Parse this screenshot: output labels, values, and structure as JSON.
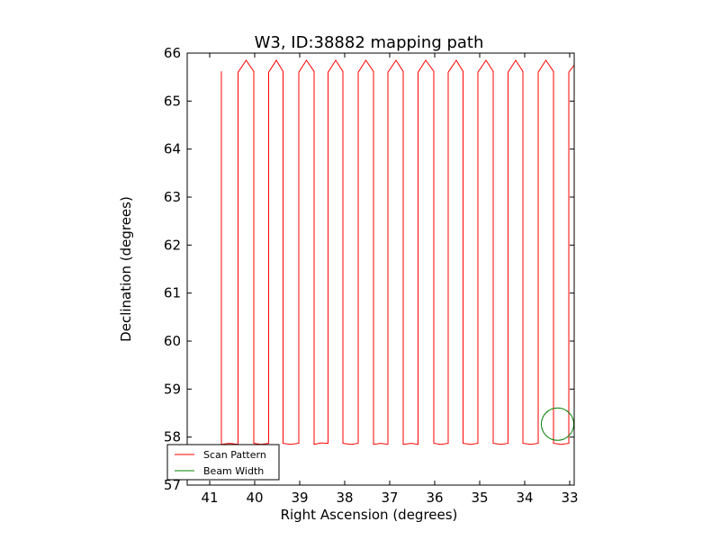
{
  "chart_data": {
    "type": "line",
    "title": "W3, ID:38882 mapping path",
    "xlabel": "Right Ascension (degrees)",
    "ylabel": "Declination (degrees)",
    "xlim": [
      41.5,
      32.9
    ],
    "ylim": [
      57,
      66
    ],
    "xticks": [
      41,
      40,
      39,
      38,
      37,
      36,
      35,
      34,
      33
    ],
    "yticks": [
      57,
      58,
      59,
      60,
      61,
      62,
      63,
      64,
      65,
      66
    ],
    "x_inverted": true,
    "grid": false,
    "legend_position": "lower-left",
    "series": [
      {
        "name": "Scan Pattern",
        "color": "#ff0000",
        "x": [
          40.74,
          40.74,
          40.74,
          40.55,
          40.37,
          40.37,
          40.19,
          40.02,
          40.02,
          39.86,
          39.69,
          39.69,
          39.52,
          39.37,
          39.37,
          39.21,
          39.02,
          39.02,
          38.85,
          38.68,
          38.68,
          38.53,
          38.37,
          38.37,
          38.2,
          38.04,
          38.04,
          37.86,
          37.7,
          37.7,
          37.53,
          37.36,
          37.36,
          37.2,
          37.04,
          37.04,
          36.86,
          36.7,
          36.7,
          36.52,
          36.37,
          36.37,
          36.2,
          36.02,
          36.02,
          35.86,
          35.7,
          35.7,
          35.52,
          35.37,
          35.37,
          35.2,
          35.04,
          35.04,
          34.86,
          34.7,
          34.7,
          34.53,
          34.37,
          34.37,
          34.2,
          34.04,
          34.04,
          33.86,
          33.7,
          33.7,
          33.53,
          33.36,
          33.36,
          33.19,
          33.02,
          33.02,
          32.9
        ],
        "y": [
          65.62,
          58.1,
          57.85,
          57.87,
          57.85,
          65.6,
          65.85,
          65.62,
          57.87,
          57.85,
          57.87,
          65.6,
          65.85,
          65.62,
          57.87,
          57.85,
          57.87,
          65.6,
          65.85,
          65.62,
          57.85,
          57.88,
          57.87,
          65.6,
          65.85,
          65.62,
          57.87,
          57.85,
          57.87,
          65.6,
          65.85,
          65.62,
          57.85,
          57.87,
          57.85,
          65.6,
          65.85,
          65.62,
          57.85,
          57.87,
          57.85,
          65.6,
          65.85,
          65.62,
          57.87,
          57.85,
          57.87,
          65.6,
          65.85,
          65.62,
          57.87,
          57.85,
          57.87,
          65.6,
          65.85,
          65.62,
          57.87,
          57.85,
          57.87,
          65.6,
          65.85,
          65.62,
          57.87,
          57.85,
          57.87,
          65.6,
          65.85,
          65.62,
          57.87,
          57.85,
          57.87,
          65.6,
          65.75
        ]
      },
      {
        "name": "Beam Width",
        "color": "#008000",
        "type": "circle",
        "center": [
          33.27,
          58.27
        ],
        "radius_deg": 0.36
      }
    ]
  }
}
